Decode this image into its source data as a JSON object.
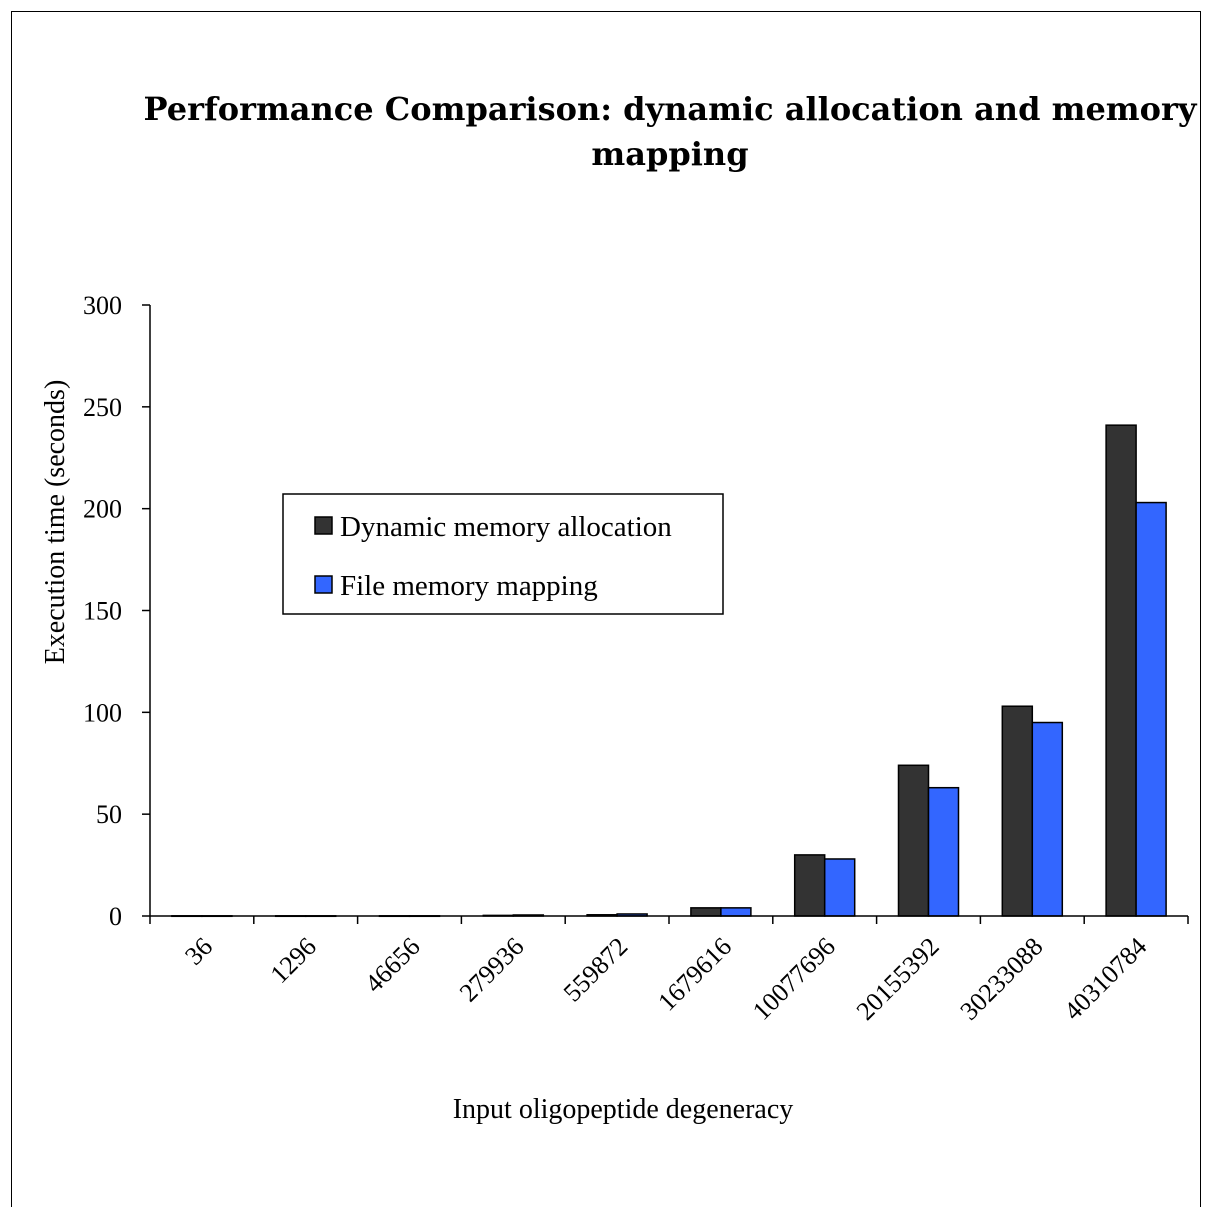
{
  "chart_data": {
    "type": "bar",
    "title": "Performance Comparison: dynamic allocation and memory mapping",
    "title_lines": [
      "Performance  Comparison:  dynamic  allocation  and  memory",
      "mapping"
    ],
    "xlabel": "Input oligopeptide degeneracy",
    "ylabel": "Execution time (seconds)",
    "ylim": [
      0,
      300
    ],
    "yticks": [
      0,
      50,
      100,
      150,
      200,
      250,
      300
    ],
    "grid": false,
    "legend_position": "center-left",
    "categories": [
      "36",
      "1296",
      "46656",
      "279936",
      "559872",
      "1679616",
      "10077696",
      "20155392",
      "30233088",
      "40310784"
    ],
    "series": [
      {
        "name": "Dynamic memory allocation",
        "color": "#333333",
        "values": [
          0.1,
          0.1,
          0.1,
          0.3,
          0.6,
          4,
          30,
          74,
          103,
          241
        ]
      },
      {
        "name": "File memory mapping",
        "color": "#3366ff",
        "values": [
          0.1,
          0.1,
          0.1,
          0.5,
          1.0,
          4,
          28,
          63,
          95,
          203
        ]
      }
    ]
  }
}
